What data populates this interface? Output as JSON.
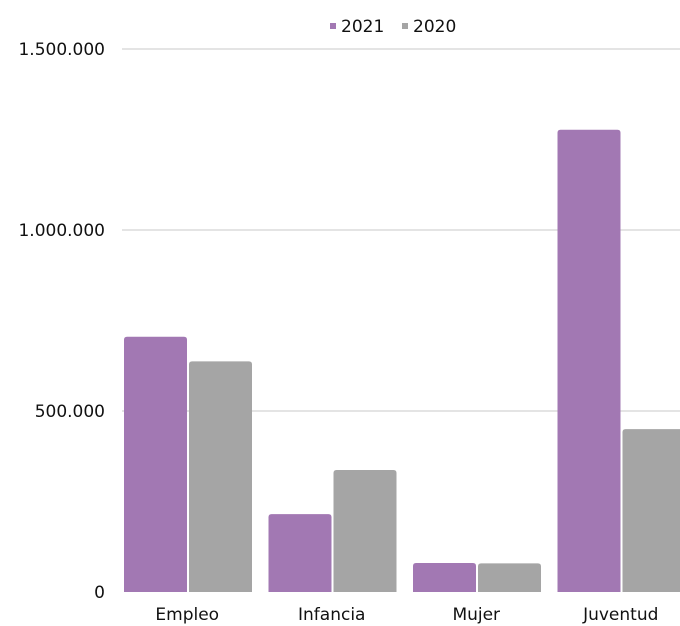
{
  "chart_data": {
    "type": "bar",
    "title": "",
    "xlabel": "",
    "ylabel": "",
    "categories": [
      "Empleo",
      "Infancia",
      "Mujer",
      "Juventud"
    ],
    "series": [
      {
        "name": "2021",
        "color": "#a278b3",
        "values": [
          705000,
          215000,
          80000,
          1277000
        ]
      },
      {
        "name": "2020",
        "color": "#a5a5a5",
        "values": [
          637000,
          337000,
          79000,
          450000
        ]
      }
    ],
    "ylim": [
      0,
      1500000
    ],
    "yticks": [
      0,
      500000,
      1000000,
      1500000
    ],
    "ytick_labels": [
      "0",
      "500.000",
      "1.000.000",
      "1.500.000"
    ],
    "grid": true,
    "legend_position": "top-center"
  }
}
